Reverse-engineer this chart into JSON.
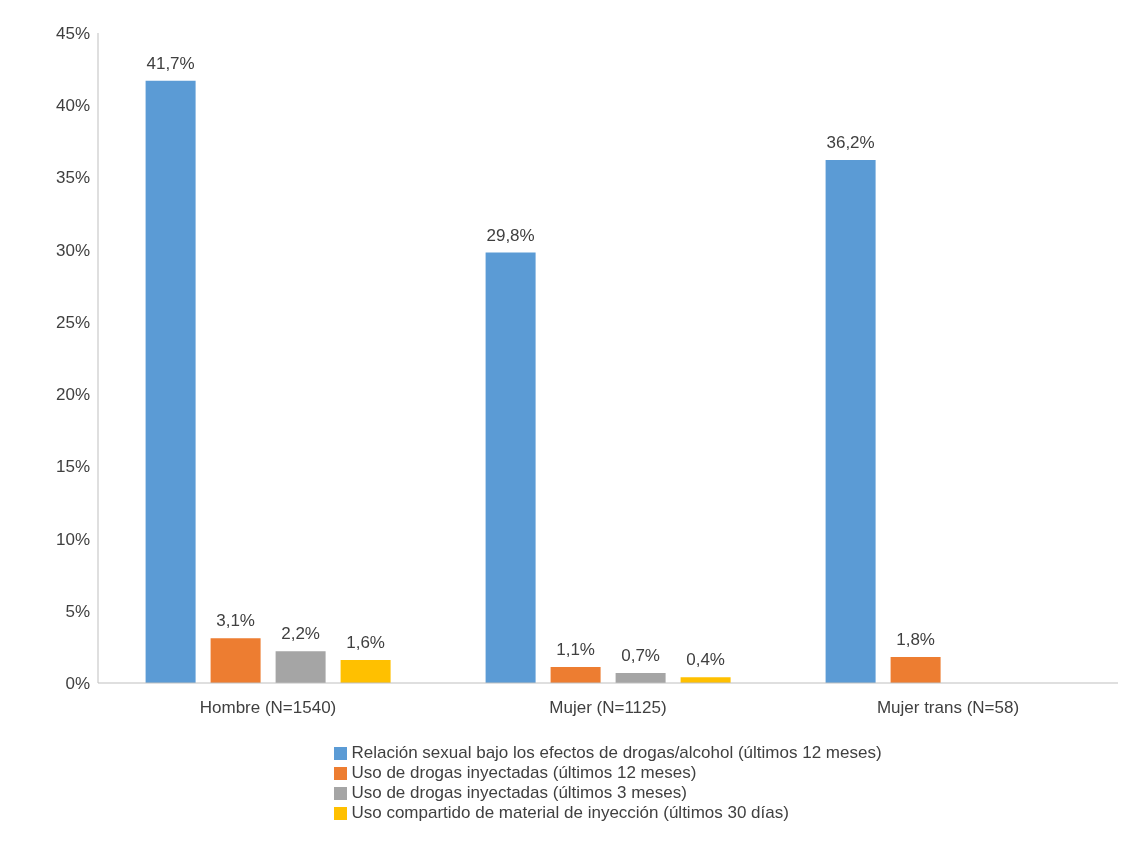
{
  "chart_data": {
    "type": "bar",
    "categories": [
      "Hombre (N=1540)",
      "Mujer (N=1125)",
      "Mujer trans (N=58)"
    ],
    "series": [
      {
        "name": "Relación sexual bajo los efectos de drogas/alcohol (últimos 12 meses)",
        "color": "#5b9bd5",
        "values": [
          41.7,
          29.8,
          36.2
        ],
        "value_labels": [
          "41,7%",
          "29,8%",
          "36,2%"
        ]
      },
      {
        "name": "Uso de drogas inyectadas (últimos 12 meses)",
        "color": "#ed7d31",
        "values": [
          3.1,
          1.1,
          1.8
        ],
        "value_labels": [
          "3,1%",
          "1,1%",
          "1,8%"
        ]
      },
      {
        "name": "Uso de drogas inyectadas (últimos 3 meses)",
        "color": "#a5a5a5",
        "values": [
          2.2,
          0.7,
          null
        ],
        "value_labels": [
          "2,2%",
          "0,7%",
          null
        ]
      },
      {
        "name": "Uso compartido de material de inyección (últimos 30 días)",
        "color": "#ffc000",
        "values": [
          1.6,
          0.4,
          null
        ],
        "value_labels": [
          "1,6%",
          "0,4%",
          null
        ]
      }
    ],
    "ylim": [
      0,
      45
    ],
    "yticks": [
      {
        "value": 0,
        "label": "0%"
      },
      {
        "value": 5,
        "label": "5%"
      },
      {
        "value": 10,
        "label": "10%"
      },
      {
        "value": 15,
        "label": "15%"
      },
      {
        "value": 20,
        "label": "20%"
      },
      {
        "value": 25,
        "label": "25%"
      },
      {
        "value": 30,
        "label": "30%"
      },
      {
        "value": 35,
        "label": "35%"
      },
      {
        "value": 40,
        "label": "40%"
      },
      {
        "value": 45,
        "label": "45%"
      }
    ],
    "grid": false,
    "legend": "bottom"
  }
}
